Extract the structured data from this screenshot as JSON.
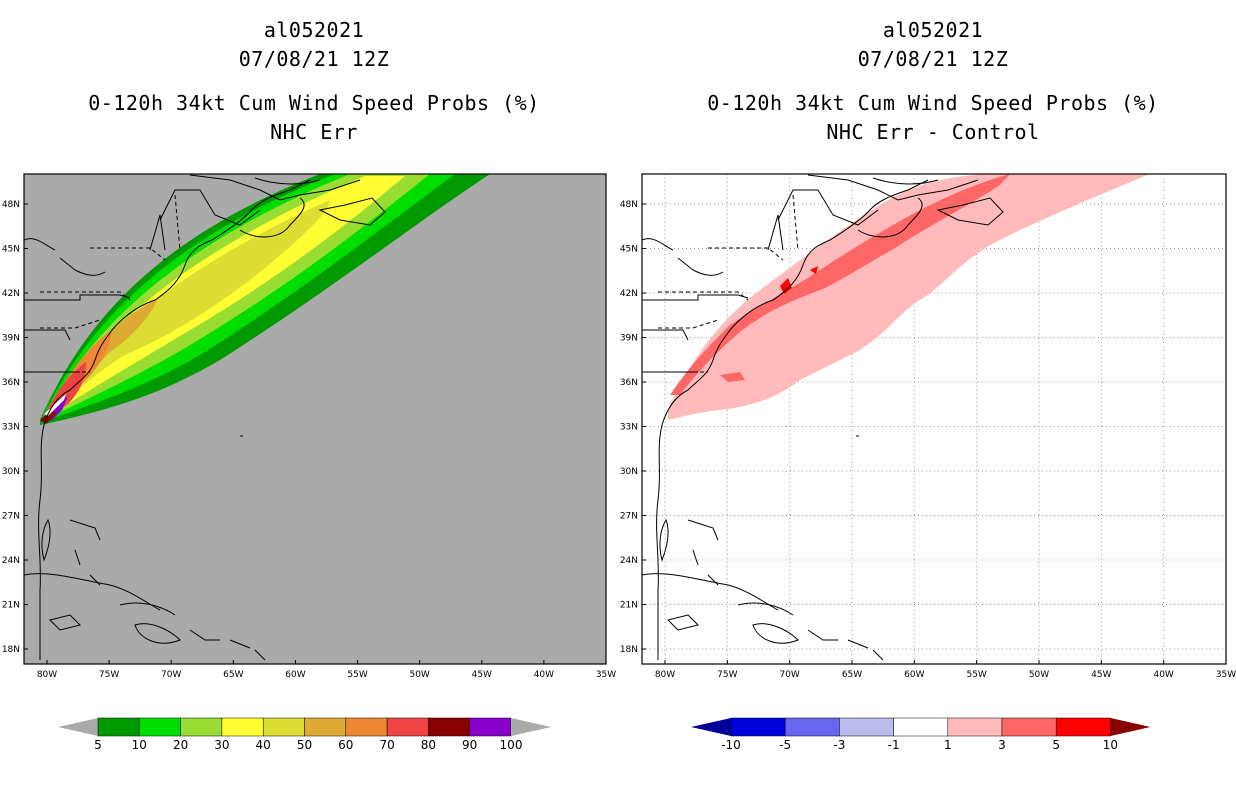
{
  "left_panel": {
    "title_lines": [
      "al052021",
      "07/08/21 12Z",
      "0-120h 34kt Cum Wind Speed Probs (%)",
      "NHC Err"
    ],
    "background_color": "#aaaaaa",
    "lat_labels": [
      "48N",
      "45N",
      "42N",
      "39N",
      "36N",
      "33N",
      "30N",
      "27N",
      "24N",
      "21N",
      "18N"
    ],
    "lon_labels": [
      "80W",
      "75W",
      "70W",
      "65W",
      "60W",
      "55W",
      "50W",
      "45W",
      "40W",
      "35W"
    ],
    "colorbar": {
      "labels": [
        "5",
        "10",
        "20",
        "30",
        "40",
        "50",
        "60",
        "70",
        "80",
        "90",
        "100"
      ],
      "colors": [
        "#009900",
        "#00dd00",
        "#99dd33",
        "#ffff33",
        "#dddd33",
        "#ddaa33",
        "#ee8833",
        "#ee4444",
        "#880000",
        "#8800cc"
      ],
      "under_color": "#aaaaaa",
      "over_color": "#aaaaaa"
    }
  },
  "right_panel": {
    "title_lines": [
      "al052021",
      "07/08/21 12Z",
      "0-120h 34kt Cum Wind Speed Probs (%)",
      "NHC Err - Control"
    ],
    "background_color": "#ffffff",
    "lat_labels": [
      "48N",
      "45N",
      "42N",
      "39N",
      "36N",
      "33N",
      "30N",
      "27N",
      "24N",
      "21N",
      "18N"
    ],
    "lon_labels": [
      "80W",
      "75W",
      "70W",
      "65W",
      "60W",
      "55W",
      "50W",
      "45W",
      "40W",
      "35W"
    ],
    "colorbar": {
      "labels": [
        "-10",
        "-5",
        "-3",
        "-1",
        "1",
        "3",
        "5",
        "10"
      ],
      "colors": [
        "#0000dd",
        "#6666ee",
        "#bbbbee",
        "#ffffff",
        "#ffbbbb",
        "#ff6666",
        "#ff0000"
      ],
      "under_color": "#000099",
      "over_color": "#880000"
    }
  }
}
